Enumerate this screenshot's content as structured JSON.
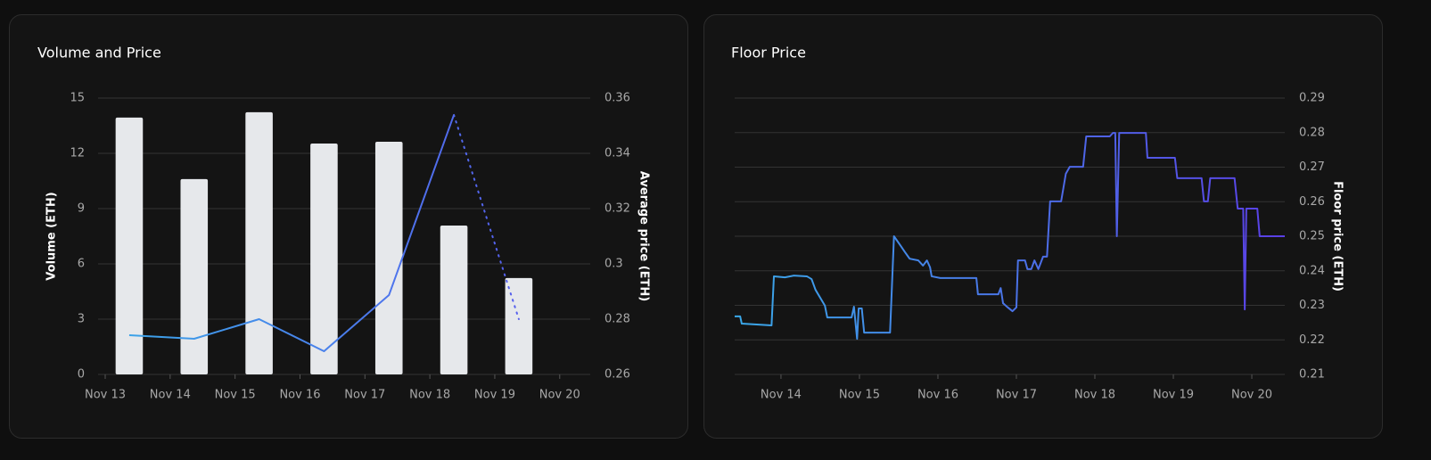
{
  "chart_data": [
    {
      "type": "bar_line",
      "title": "Volume and Price",
      "xlim": [
        12.89,
        20.47
      ],
      "xticks": [
        {
          "value": 13,
          "label": "Nov 13"
        },
        {
          "value": 14,
          "label": "Nov 14"
        },
        {
          "value": 15,
          "label": "Nov 15"
        },
        {
          "value": 16,
          "label": "Nov 16"
        },
        {
          "value": 17,
          "label": "Nov 17"
        },
        {
          "value": 18,
          "label": "Nov 18"
        },
        {
          "value": 19,
          "label": "Nov 19"
        },
        {
          "value": 20,
          "label": "Nov 20"
        }
      ],
      "ylim": [
        0,
        15
      ],
      "yticks": [
        0,
        3,
        6,
        9,
        12,
        15
      ],
      "ylabel": "Volume (ETH)",
      "y2lim": [
        0.26,
        0.36
      ],
      "y2ticks": [
        0.26,
        0.28,
        0.3,
        0.32,
        0.34,
        0.36
      ],
      "y2label": "Average price (ETH)",
      "grid": true,
      "series": [
        {
          "type": "bar",
          "color": "#e6e8eb",
          "x": [
            13.37,
            14.37,
            15.37,
            16.37,
            17.37,
            18.37,
            19.37
          ],
          "values": [
            13.94,
            10.6,
            14.23,
            12.53,
            12.63,
            8.08,
            5.23
          ]
        },
        {
          "type": "line",
          "axis": "y2",
          "color": [
            "#3aa8e8",
            "#5a52ee"
          ],
          "last_segment_style": "dotted",
          "x": [
            13.37,
            14.37,
            15.37,
            16.37,
            17.37,
            18.37,
            19.37
          ],
          "values": [
            0.2742,
            0.2729,
            0.28,
            0.2684,
            0.2887,
            0.3539,
            0.28
          ]
        }
      ]
    },
    {
      "type": "line",
      "title": "Floor Price",
      "xlim": [
        13.41,
        20.42
      ],
      "xticks": [
        {
          "value": 14,
          "label": "Nov 14"
        },
        {
          "value": 15,
          "label": "Nov 15"
        },
        {
          "value": 16,
          "label": "Nov 16"
        },
        {
          "value": 17,
          "label": "Nov 17"
        },
        {
          "value": 18,
          "label": "Nov 18"
        },
        {
          "value": 19,
          "label": "Nov 19"
        },
        {
          "value": 20,
          "label": "Nov 20"
        }
      ],
      "y2lim": [
        0.21,
        0.29
      ],
      "y2ticks": [
        0.21,
        0.22,
        0.23,
        0.24,
        0.25,
        0.26,
        0.27,
        0.28,
        0.29
      ],
      "y2label": "Floor price (ETH)",
      "grid": true,
      "series": [
        {
          "type": "line",
          "axis": "y2",
          "color": [
            "#3aa8e8",
            "#5a3fe6"
          ],
          "x": [
            13.41,
            13.48,
            13.5,
            13.88,
            13.91,
            14.05,
            14.16,
            14.33,
            14.39,
            14.44,
            14.56,
            14.59,
            14.9,
            14.93,
            14.97,
            14.99,
            15.03,
            15.06,
            15.39,
            15.44,
            15.52,
            15.58,
            15.64,
            15.75,
            15.81,
            15.86,
            15.9,
            15.92,
            16.03,
            16.49,
            16.51,
            16.77,
            16.8,
            16.83,
            16.89,
            16.95,
            17.0,
            17.02,
            17.11,
            17.14,
            17.19,
            17.23,
            17.28,
            17.34,
            17.39,
            17.43,
            17.57,
            17.63,
            17.68,
            17.85,
            17.89,
            18.19,
            18.23,
            18.26,
            18.28,
            18.31,
            18.65,
            18.67,
            19.02,
            19.05,
            19.36,
            19.39,
            19.44,
            19.47,
            19.78,
            19.82,
            19.89,
            19.91,
            19.93,
            20.07,
            20.1,
            20.42
          ],
          "values": [
            0.2268,
            0.2268,
            0.2247,
            0.2242,
            0.2384,
            0.2381,
            0.2386,
            0.2384,
            0.2376,
            0.2345,
            0.2299,
            0.2265,
            0.2265,
            0.2296,
            0.2203,
            0.2291,
            0.2291,
            0.2221,
            0.2221,
            0.25,
            0.2474,
            0.2454,
            0.2435,
            0.243,
            0.2415,
            0.243,
            0.241,
            0.2384,
            0.2379,
            0.2379,
            0.2332,
            0.2332,
            0.235,
            0.2306,
            0.2294,
            0.2283,
            0.2294,
            0.243,
            0.243,
            0.2405,
            0.2405,
            0.243,
            0.2405,
            0.2441,
            0.2441,
            0.2601,
            0.2601,
            0.2681,
            0.2701,
            0.2701,
            0.2789,
            0.2789,
            0.2799,
            0.2799,
            0.25,
            0.2799,
            0.2799,
            0.2727,
            0.2727,
            0.2668,
            0.2668,
            0.2601,
            0.2601,
            0.2668,
            0.2668,
            0.258,
            0.258,
            0.2288,
            0.258,
            0.258,
            0.25,
            0.25
          ]
        }
      ]
    }
  ]
}
